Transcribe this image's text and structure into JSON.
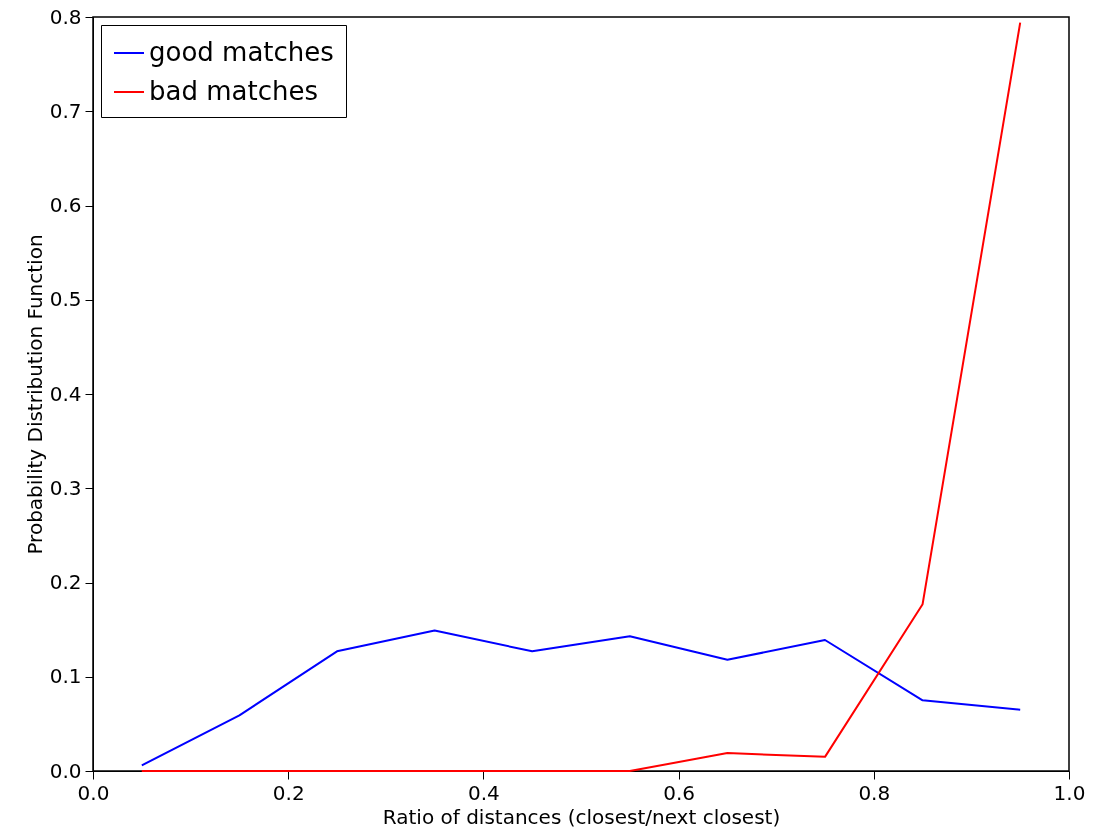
{
  "chart_data": {
    "type": "line",
    "xlabel": "Ratio of distances (closest/next closest)",
    "ylabel": "Probability Distribution Function",
    "x": [
      0.05,
      0.15,
      0.25,
      0.35,
      0.45,
      0.55,
      0.65,
      0.75,
      0.85,
      0.95
    ],
    "series": [
      {
        "name": "good matches",
        "color": "#0000ff",
        "values": [
          0.006,
          0.059,
          0.127,
          0.149,
          0.127,
          0.143,
          0.118,
          0.139,
          0.075,
          0.065
        ]
      },
      {
        "name": "bad matches",
        "color": "#ff0000",
        "values": [
          0.0,
          0.0,
          0.0,
          0.0,
          0.0,
          0.0,
          0.019,
          0.015,
          0.177,
          0.794
        ]
      }
    ],
    "xlim": [
      0.0,
      1.0
    ],
    "xticks": [
      {
        "value": 0,
        "label": "0.0"
      },
      0.2,
      0.4,
      0.6,
      0.8,
      {
        "value": 1,
        "label": "1.0"
      }
    ],
    "ylim": [
      0.0,
      0.8
    ],
    "yticks": [
      {
        "value": 0,
        "label": "0.0"
      },
      0.1,
      0.2,
      0.3,
      0.4,
      0.5,
      0.6,
      0.7,
      0.8
    ],
    "grid": false,
    "legend": "top left",
    "marker": "none",
    "line_style": "solid"
  }
}
